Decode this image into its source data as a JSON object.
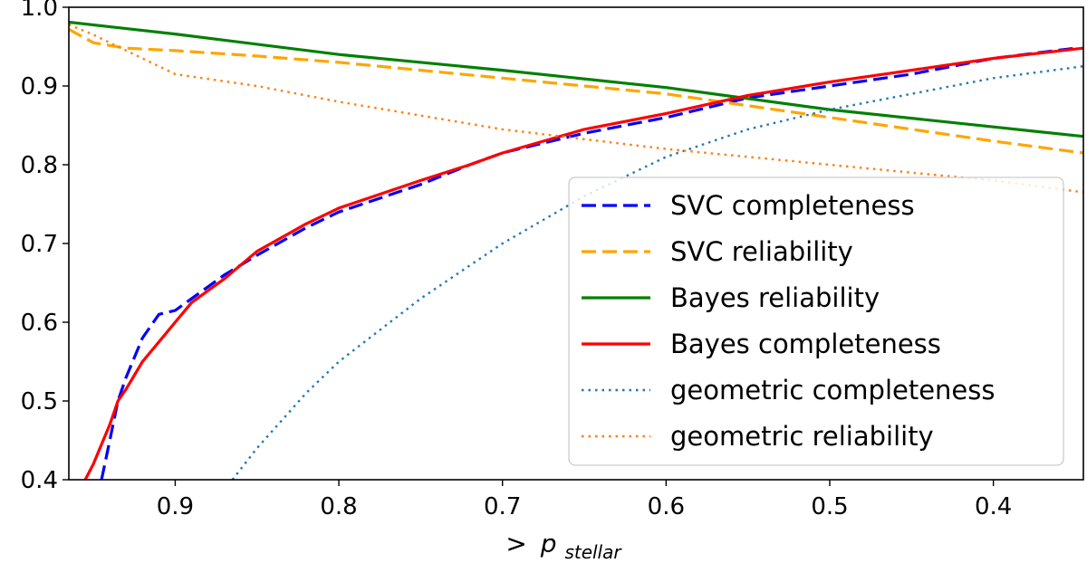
{
  "chart_data": {
    "type": "line",
    "title": "",
    "xlabel": ">",
    "xlabel_symbol": "p",
    "xlabel_subscript": "stellar",
    "ylabel": "",
    "xlim": [
      0.965,
      0.345
    ],
    "ylim": [
      0.4,
      1.0
    ],
    "x_inverted": true,
    "xticks": [
      0.9,
      0.8,
      0.7,
      0.6,
      0.5,
      0.4
    ],
    "xtick_labels": [
      "0.9",
      "0.8",
      "0.7",
      "0.6",
      "0.5",
      "0.4"
    ],
    "yticks": [
      0.4,
      0.5,
      0.6,
      0.7,
      0.8,
      0.9,
      1.0
    ],
    "ytick_labels": [
      "0.4",
      "0.5",
      "0.6",
      "0.7",
      "0.8",
      "0.9",
      "1.0"
    ],
    "legend_position": "center-right",
    "series": [
      {
        "name": "SVC completeness",
        "color": "#0000ff",
        "style": "dashed",
        "x": [
          0.945,
          0.94,
          0.935,
          0.93,
          0.92,
          0.91,
          0.9,
          0.89,
          0.88,
          0.87,
          0.85,
          0.82,
          0.8,
          0.75,
          0.72,
          0.7,
          0.65,
          0.6,
          0.55,
          0.5,
          0.45,
          0.4,
          0.35
        ],
        "values": [
          0.4,
          0.45,
          0.5,
          0.53,
          0.58,
          0.61,
          0.615,
          0.63,
          0.645,
          0.66,
          0.685,
          0.72,
          0.74,
          0.775,
          0.8,
          0.815,
          0.84,
          0.86,
          0.885,
          0.9,
          0.915,
          0.935,
          0.948
        ]
      },
      {
        "name": "SVC reliability",
        "color": "#ffa500",
        "style": "dashed",
        "x": [
          0.965,
          0.95,
          0.93,
          0.9,
          0.85,
          0.8,
          0.7,
          0.6,
          0.5,
          0.4,
          0.345
        ],
        "values": [
          0.972,
          0.955,
          0.948,
          0.945,
          0.938,
          0.93,
          0.91,
          0.89,
          0.86,
          0.83,
          0.815
        ]
      },
      {
        "name": "Bayes reliability",
        "color": "#008000",
        "style": "solid",
        "x": [
          0.965,
          0.9,
          0.8,
          0.7,
          0.6,
          0.5,
          0.4,
          0.345
        ],
        "values": [
          0.981,
          0.966,
          0.94,
          0.92,
          0.898,
          0.87,
          0.848,
          0.836
        ]
      },
      {
        "name": "Bayes completeness",
        "color": "#ff0000",
        "style": "solid",
        "x": [
          0.955,
          0.95,
          0.945,
          0.94,
          0.935,
          0.93,
          0.92,
          0.91,
          0.9,
          0.89,
          0.88,
          0.87,
          0.85,
          0.82,
          0.8,
          0.75,
          0.72,
          0.7,
          0.65,
          0.6,
          0.55,
          0.5,
          0.45,
          0.4,
          0.345
        ],
        "values": [
          0.4,
          0.42,
          0.445,
          0.47,
          0.5,
          0.515,
          0.55,
          0.575,
          0.6,
          0.625,
          0.64,
          0.655,
          0.69,
          0.725,
          0.745,
          0.78,
          0.8,
          0.815,
          0.845,
          0.865,
          0.888,
          0.905,
          0.92,
          0.935,
          0.948
        ]
      },
      {
        "name": "geometric completeness",
        "color": "#1f77b4",
        "style": "dotted",
        "x": [
          0.865,
          0.85,
          0.82,
          0.8,
          0.75,
          0.7,
          0.65,
          0.6,
          0.55,
          0.5,
          0.45,
          0.4,
          0.345
        ],
        "values": [
          0.4,
          0.44,
          0.51,
          0.55,
          0.63,
          0.7,
          0.76,
          0.81,
          0.845,
          0.87,
          0.89,
          0.91,
          0.925
        ]
      },
      {
        "name": "geometric reliability",
        "color": "#ff7f0e",
        "style": "dotted",
        "x": [
          0.965,
          0.95,
          0.92,
          0.9,
          0.85,
          0.8,
          0.7,
          0.6,
          0.5,
          0.4,
          0.345
        ],
        "values": [
          0.978,
          0.965,
          0.935,
          0.915,
          0.9,
          0.88,
          0.845,
          0.82,
          0.8,
          0.78,
          0.765
        ]
      }
    ]
  }
}
